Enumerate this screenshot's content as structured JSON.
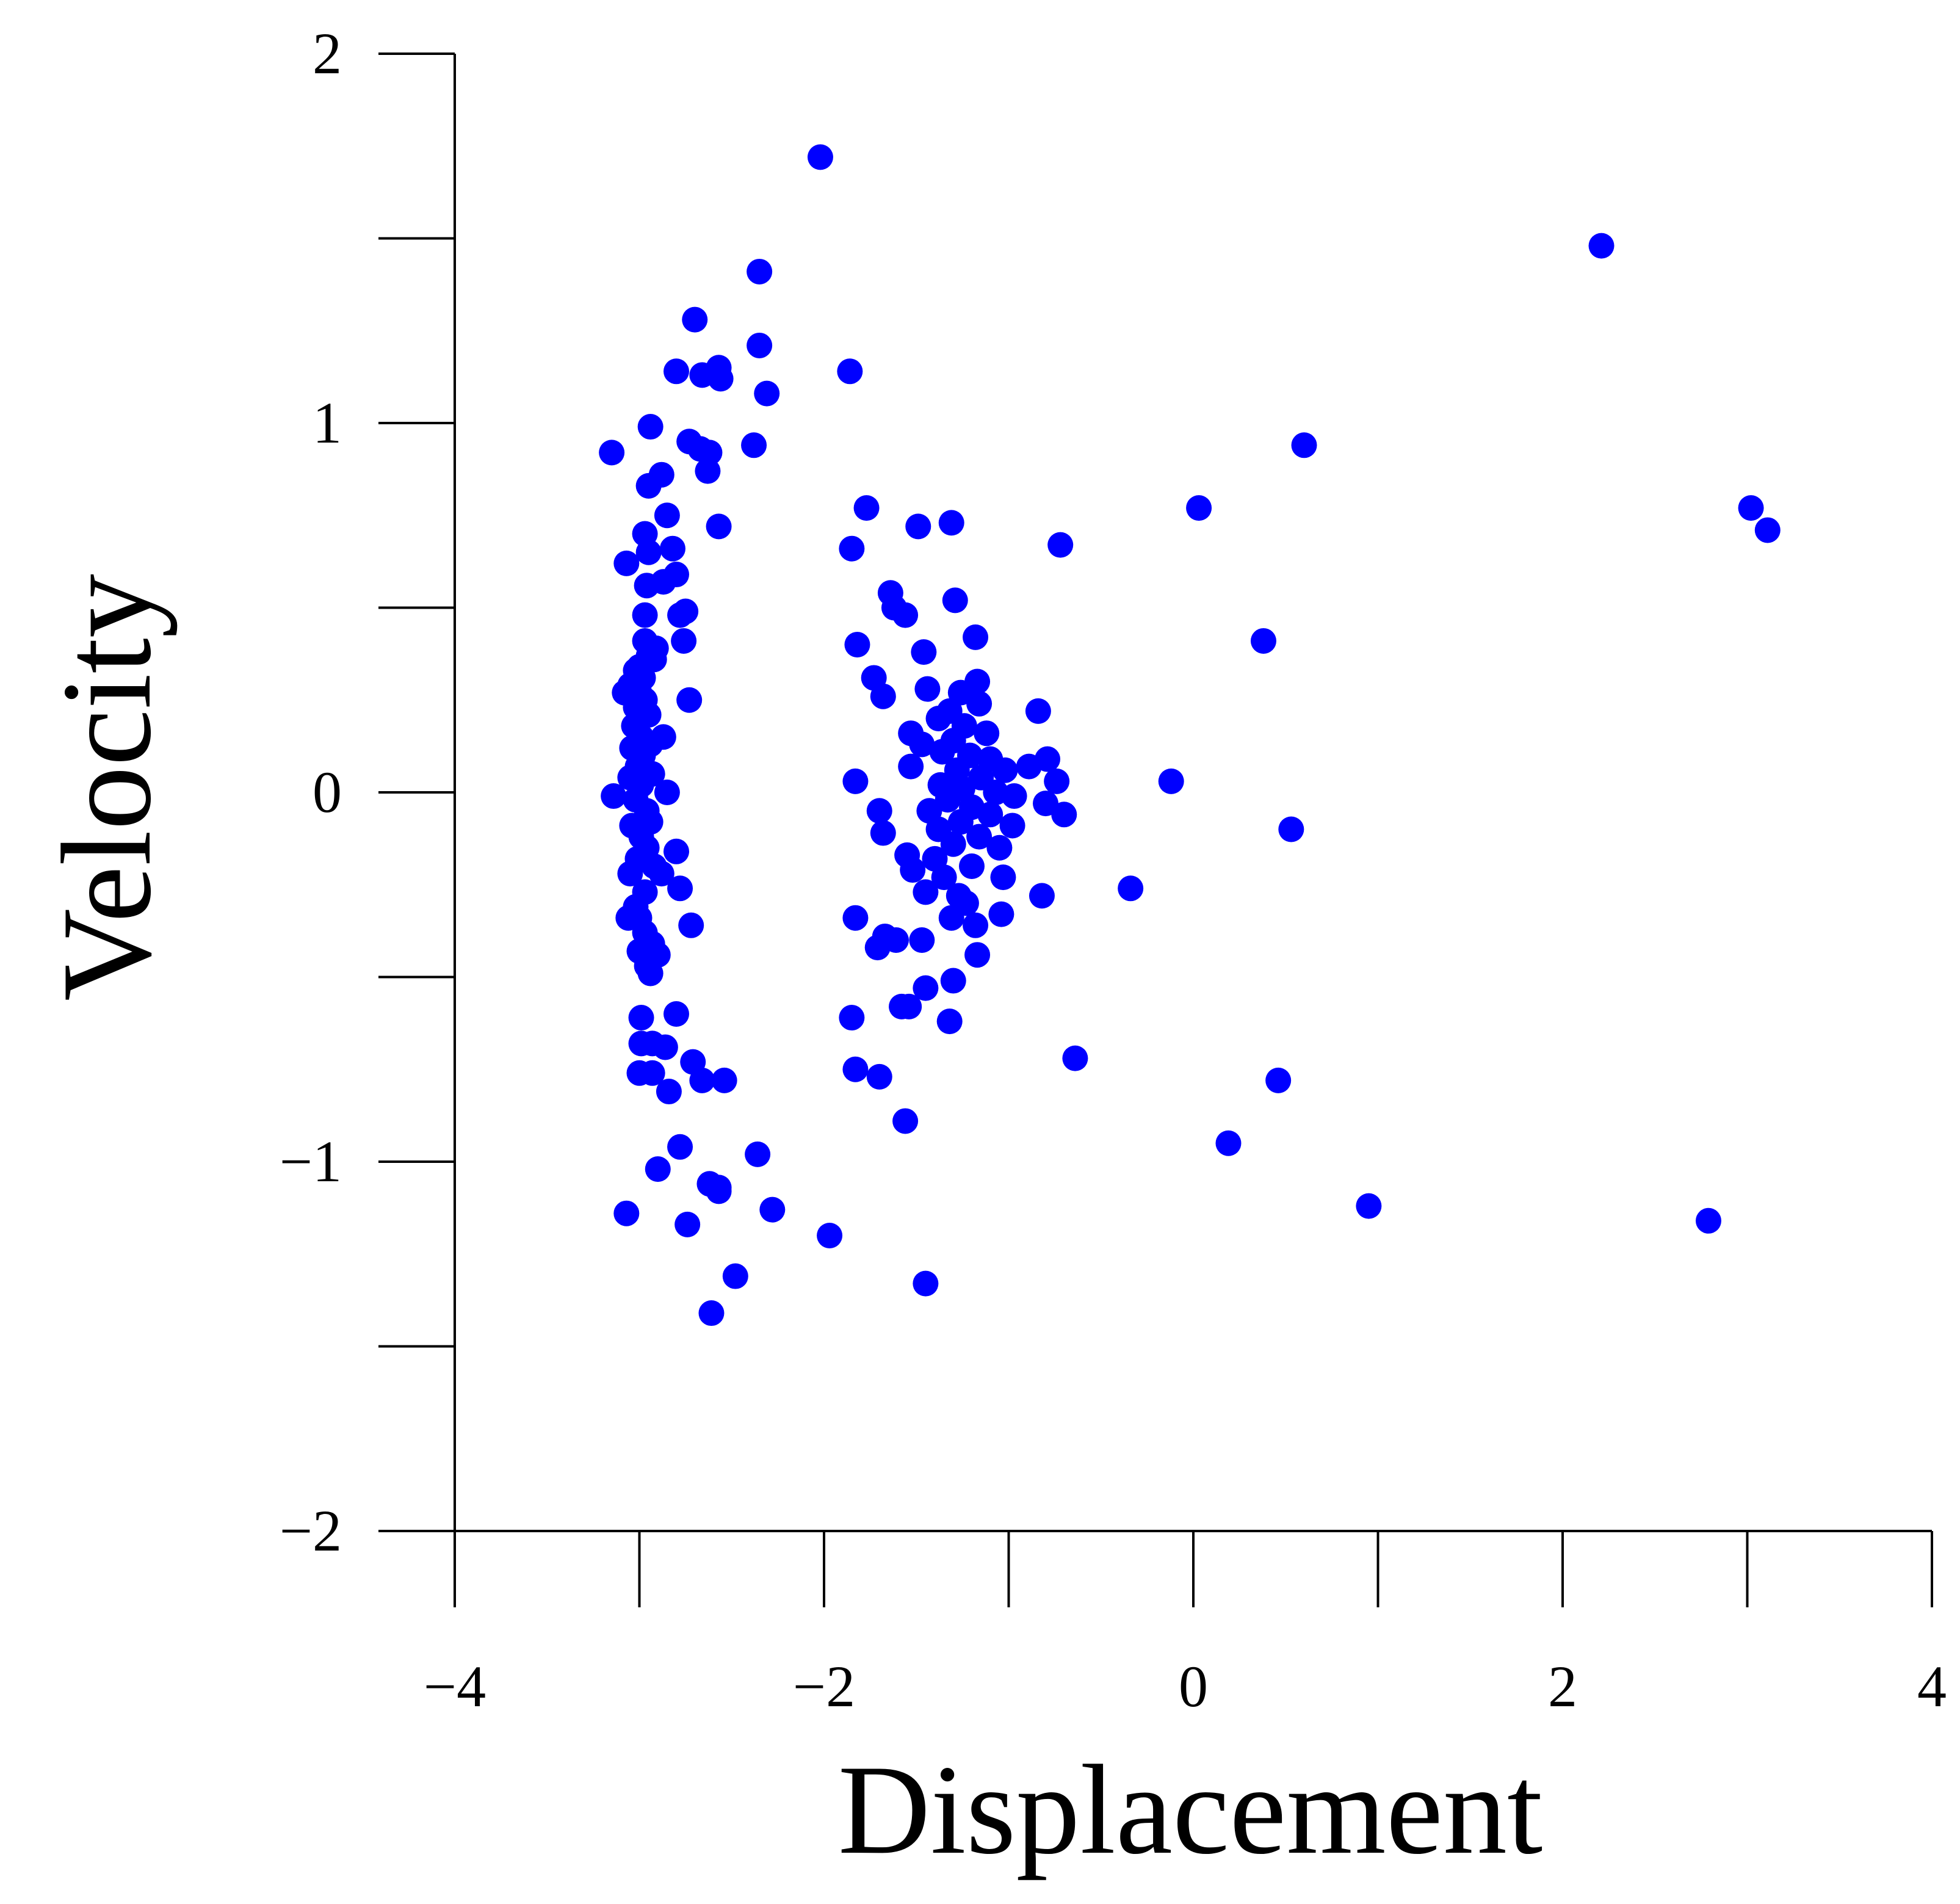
{
  "chart_data": {
    "type": "scatter",
    "title": "",
    "xlabel": "Displacement",
    "ylabel": "Velocity",
    "xlim": [
      -4,
      4
    ],
    "ylim": [
      -2,
      2
    ],
    "x_ticks": [
      -4,
      -3,
      -2,
      -1,
      0,
      1,
      2,
      3,
      4
    ],
    "x_tick_labels": [
      {
        "value": -4,
        "label": "−4"
      },
      {
        "value": -2,
        "label": "−2"
      },
      {
        "value": 0,
        "label": "0"
      },
      {
        "value": 2,
        "label": "2"
      },
      {
        "value": 4,
        "label": "4"
      }
    ],
    "y_ticks": [
      -2,
      -1.5,
      -1,
      -0.5,
      0,
      0.5,
      1,
      1.5,
      2
    ],
    "y_tick_labels": [
      {
        "value": 2,
        "label": "2"
      },
      {
        "value": 1,
        "label": "1"
      },
      {
        "value": 0,
        "label": "0"
      },
      {
        "value": -1,
        "label": "−1"
      },
      {
        "value": -2,
        "label": "−2"
      }
    ],
    "grid": false,
    "legend": "none",
    "marker_color": "#0000ff",
    "series": [
      {
        "points": [
          [
            -2.02,
            1.72
          ],
          [
            2.21,
            1.48
          ],
          [
            -2.35,
            1.41
          ],
          [
            -2.7,
            1.28
          ],
          [
            -2.35,
            1.21
          ],
          [
            -1.86,
            1.14
          ],
          [
            -2.8,
            1.14
          ],
          [
            -2.66,
            1.13
          ],
          [
            -2.57,
            1.15
          ],
          [
            -2.56,
            1.12
          ],
          [
            -2.31,
            1.08
          ],
          [
            -2.94,
            0.99
          ],
          [
            -2.73,
            0.95
          ],
          [
            -2.38,
            0.94
          ],
          [
            -3.15,
            0.92
          ],
          [
            -2.67,
            0.93
          ],
          [
            -2.62,
            0.92
          ],
          [
            -2.63,
            0.87
          ],
          [
            -2.88,
            0.86
          ],
          [
            -2.95,
            0.83
          ],
          [
            0.6,
            0.94
          ],
          [
            0.03,
            0.77
          ],
          [
            3.02,
            0.77
          ],
          [
            3.11,
            0.71
          ],
          [
            -1.77,
            0.77
          ],
          [
            -1.49,
            0.72
          ],
          [
            -1.31,
            0.73
          ],
          [
            -0.72,
            0.67
          ],
          [
            -1.85,
            0.66
          ],
          [
            -2.85,
            0.75
          ],
          [
            -2.57,
            0.72
          ],
          [
            -2.97,
            0.7
          ],
          [
            -2.95,
            0.65
          ],
          [
            -2.82,
            0.66
          ],
          [
            -3.07,
            0.62
          ],
          [
            -2.8,
            0.59
          ],
          [
            -2.96,
            0.56
          ],
          [
            -2.87,
            0.57
          ],
          [
            -2.75,
            0.49
          ],
          [
            -2.78,
            0.48
          ],
          [
            -2.97,
            0.48
          ],
          [
            -2.76,
            0.41
          ],
          [
            -2.97,
            0.41
          ],
          [
            -2.91,
            0.39
          ],
          [
            -2.95,
            0.37
          ],
          [
            -3.0,
            0.34
          ],
          [
            -2.92,
            0.36
          ],
          [
            -3.02,
            0.33
          ],
          [
            -2.98,
            0.31
          ],
          [
            -3.05,
            0.29
          ],
          [
            -3.0,
            0.27
          ],
          [
            -3.08,
            0.27
          ],
          [
            -2.97,
            0.25
          ],
          [
            -2.73,
            0.25
          ],
          [
            -3.02,
            0.23
          ],
          [
            -2.95,
            0.21
          ],
          [
            -3.03,
            0.18
          ],
          [
            -2.99,
            0.15
          ],
          [
            -2.94,
            0.13
          ],
          [
            -2.87,
            0.15
          ],
          [
            -3.04,
            0.12
          ],
          [
            -2.98,
            0.1
          ],
          [
            -3.01,
            0.07
          ],
          [
            -2.93,
            0.05
          ],
          [
            -3.05,
            0.04
          ],
          [
            -2.99,
            0.02
          ],
          [
            -2.85,
            0.0
          ],
          [
            -3.14,
            -0.01
          ],
          [
            -3.02,
            -0.02
          ],
          [
            -2.96,
            -0.05
          ],
          [
            -2.94,
            -0.08
          ],
          [
            -3.04,
            -0.09
          ],
          [
            -2.99,
            -0.12
          ],
          [
            -2.96,
            -0.15
          ],
          [
            -2.8,
            -0.16
          ],
          [
            -3.01,
            -0.18
          ],
          [
            -2.92,
            -0.2
          ],
          [
            -2.88,
            -0.22
          ],
          [
            -3.05,
            -0.22
          ],
          [
            -2.78,
            -0.26
          ],
          [
            -2.97,
            -0.27
          ],
          [
            -3.02,
            -0.31
          ],
          [
            -3.0,
            -0.34
          ],
          [
            -3.06,
            -0.34
          ],
          [
            -2.72,
            -0.36
          ],
          [
            -2.97,
            -0.38
          ],
          [
            -2.93,
            -0.41
          ],
          [
            -3.0,
            -0.43
          ],
          [
            -2.9,
            -0.44
          ],
          [
            -2.96,
            -0.47
          ],
          [
            -2.94,
            -0.49
          ],
          [
            -2.99,
            -0.61
          ],
          [
            -2.8,
            -0.6
          ],
          [
            -2.99,
            -0.68
          ],
          [
            -2.93,
            -0.68
          ],
          [
            -2.86,
            -0.69
          ],
          [
            -3.0,
            -0.76
          ],
          [
            -2.93,
            -0.76
          ],
          [
            -2.71,
            -0.73
          ],
          [
            -2.66,
            -0.78
          ],
          [
            -2.54,
            -0.78
          ],
          [
            -2.84,
            -0.81
          ],
          [
            -2.78,
            -0.96
          ],
          [
            -2.9,
            -1.02
          ],
          [
            -2.62,
            -1.06
          ],
          [
            -2.57,
            -1.07
          ],
          [
            -2.36,
            -0.98
          ],
          [
            -2.57,
            -1.08
          ],
          [
            -3.07,
            -1.14
          ],
          [
            -2.28,
            -1.13
          ],
          [
            -2.74,
            -1.17
          ],
          [
            -2.48,
            -1.31
          ],
          [
            -2.61,
            -1.41
          ],
          [
            -1.97,
            -1.2
          ],
          [
            -1.45,
            -1.33
          ],
          [
            -1.64,
            0.54
          ],
          [
            -1.62,
            0.5
          ],
          [
            -1.29,
            0.52
          ],
          [
            -1.56,
            0.48
          ],
          [
            -1.82,
            0.4
          ],
          [
            -1.18,
            0.42
          ],
          [
            -1.46,
            0.38
          ],
          [
            -1.73,
            0.31
          ],
          [
            -1.68,
            0.26
          ],
          [
            -1.44,
            0.28
          ],
          [
            -1.17,
            0.3
          ],
          [
            -1.26,
            0.27
          ],
          [
            -1.32,
            0.22
          ],
          [
            -1.16,
            0.24
          ],
          [
            -1.38,
            0.2
          ],
          [
            -1.24,
            0.18
          ],
          [
            -1.53,
            0.16
          ],
          [
            -1.12,
            0.16
          ],
          [
            -1.3,
            0.14
          ],
          [
            -1.47,
            0.13
          ],
          [
            -1.36,
            0.11
          ],
          [
            -1.21,
            0.1
          ],
          [
            -1.1,
            0.09
          ],
          [
            -0.89,
            0.07
          ],
          [
            -1.53,
            0.07
          ],
          [
            -1.28,
            0.06
          ],
          [
            -1.02,
            0.06
          ],
          [
            -1.15,
            0.04
          ],
          [
            -1.83,
            0.03
          ],
          [
            -1.37,
            0.02
          ],
          [
            -1.25,
            0.01
          ],
          [
            -1.07,
            0.0
          ],
          [
            -0.97,
            -0.01
          ],
          [
            -1.33,
            -0.02
          ],
          [
            -1.2,
            -0.04
          ],
          [
            -1.7,
            -0.05
          ],
          [
            -1.43,
            -0.05
          ],
          [
            -1.1,
            -0.06
          ],
          [
            -1.26,
            -0.08
          ],
          [
            -0.98,
            -0.09
          ],
          [
            -1.38,
            -0.1
          ],
          [
            -1.68,
            -0.11
          ],
          [
            -1.16,
            -0.12
          ],
          [
            -1.3,
            -0.14
          ],
          [
            -1.05,
            -0.15
          ],
          [
            -1.55,
            -0.17
          ],
          [
            -1.4,
            -0.18
          ],
          [
            -1.2,
            -0.2
          ],
          [
            -1.52,
            -0.21
          ],
          [
            -1.03,
            -0.23
          ],
          [
            -1.35,
            -0.23
          ],
          [
            -1.45,
            -0.27
          ],
          [
            -1.27,
            -0.28
          ],
          [
            -1.23,
            -0.3
          ],
          [
            -1.83,
            -0.34
          ],
          [
            -1.04,
            -0.33
          ],
          [
            -1.31,
            -0.34
          ],
          [
            -1.18,
            -0.36
          ],
          [
            -1.67,
            -0.39
          ],
          [
            -1.61,
            -0.4
          ],
          [
            -1.47,
            -0.4
          ],
          [
            -1.71,
            -0.42
          ],
          [
            -1.17,
            -0.44
          ],
          [
            -1.3,
            -0.51
          ],
          [
            -1.45,
            -0.53
          ],
          [
            -1.58,
            -0.58
          ],
          [
            -1.54,
            -0.58
          ],
          [
            -1.85,
            -0.61
          ],
          [
            -1.32,
            -0.62
          ],
          [
            -1.83,
            -0.75
          ],
          [
            -1.7,
            -0.77
          ],
          [
            -1.56,
            -0.89
          ],
          [
            -0.84,
            0.22
          ],
          [
            -0.79,
            0.09
          ],
          [
            -0.74,
            0.03
          ],
          [
            -0.12,
            0.03
          ],
          [
            -0.8,
            -0.03
          ],
          [
            -0.7,
            -0.06
          ],
          [
            -0.82,
            -0.28
          ],
          [
            -0.34,
            -0.26
          ],
          [
            -0.64,
            -0.72
          ],
          [
            0.38,
            0.41
          ],
          [
            0.53,
            -0.1
          ],
          [
            0.46,
            -0.78
          ],
          [
            0.19,
            -0.95
          ],
          [
            0.95,
            -1.12
          ],
          [
            2.79,
            -1.16
          ]
        ]
      }
    ]
  }
}
